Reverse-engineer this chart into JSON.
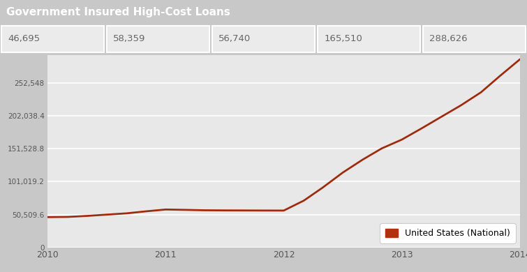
{
  "title": "Government Insured High-Cost Loans",
  "title_bg": "#a8a8a8",
  "title_color": "white",
  "summary_values": [
    "46,695",
    "58,359",
    "56,740",
    "165,510",
    "288,626"
  ],
  "summary_bg": "#ebebeb",
  "summary_text_color": "#666666",
  "chart_bg": "#e8e8e8",
  "outer_bg": "#c8c8c8",
  "line_color": "#b03010",
  "line_color_dark": "#5a2a10",
  "years": [
    2010.0,
    2010.17,
    2010.33,
    2010.5,
    2010.67,
    2010.83,
    2011.0,
    2011.17,
    2011.33,
    2011.5,
    2011.67,
    2011.83,
    2012.0,
    2012.17,
    2012.33,
    2012.5,
    2012.67,
    2012.83,
    2013.0,
    2013.17,
    2013.33,
    2013.5,
    2013.67,
    2013.83,
    2014.0
  ],
  "values": [
    46695,
    47000,
    48500,
    50500,
    52500,
    55500,
    58359,
    57800,
    57200,
    57000,
    56900,
    56800,
    56740,
    72000,
    92000,
    115000,
    135000,
    152000,
    165510,
    183000,
    200000,
    218000,
    238000,
    263000,
    288626
  ],
  "yticks": [
    0,
    50509.6,
    101019.2,
    151528.8,
    202038.4,
    252548
  ],
  "ytick_labels": [
    "0",
    "50,509.6",
    "101,019.2",
    "151,528.8",
    "202,038.4",
    "252,548"
  ],
  "xticks": [
    2010,
    2011,
    2012,
    2013,
    2014
  ],
  "legend_label": "United States (National)",
  "ylim": [
    0,
    295000
  ],
  "xlim": [
    2010,
    2014
  ]
}
